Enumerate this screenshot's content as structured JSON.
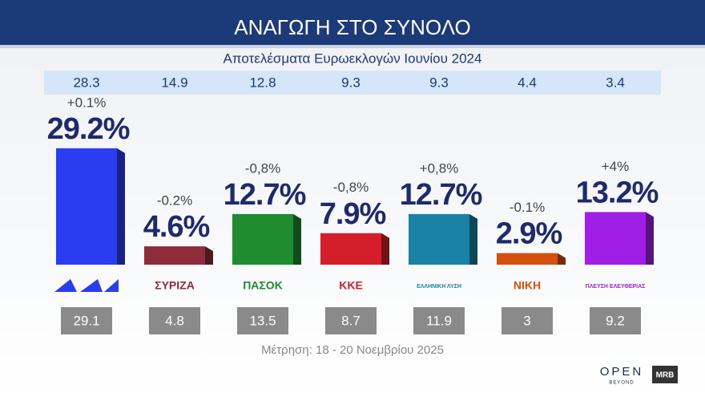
{
  "chart_data": {
    "type": "bar",
    "title": "ΑΝΑΓΩΓΗ ΣΤΟ ΣΥΝΟΛΟ",
    "subtitle": "Αποτελέσματα Ευρωεκλογών Ιουνίου 2024",
    "categories": [
      null,
      "ΣΥΡΙΖΑ",
      "ΠΑΣΟΚ",
      "ΚΚΕ",
      "ΕΛΛΗΝΙΚΗ ΛΥΣΗ",
      "ΝΙΚΗ",
      "ΠΛΕΥΣΗ ΕΛΕΥΘΕΡΙΑΣ"
    ],
    "values": [
      29.2,
      4.6,
      12.7,
      7.9,
      12.7,
      2.9,
      13.2
    ],
    "value_labels": [
      "29.2%",
      "4.6%",
      "12.7%",
      "7.9%",
      "12.7%",
      "2.9%",
      "13.2%"
    ],
    "change_labels": [
      "+0.1%",
      "-0.2%",
      "-0,8%",
      "-0,8%",
      "+0,8%",
      "-0.1%",
      "+4%"
    ],
    "colors": [
      "#2b3df0",
      "#8e2c3c",
      "#1f8c30",
      "#d41f2a",
      "#1a82a4",
      "#d4500f",
      "#a11ee6"
    ],
    "euro_2024": [
      28.3,
      14.9,
      12.8,
      9.3,
      9.3,
      4.4,
      3.4
    ],
    "previous": [
      29.1,
      4.8,
      13.5,
      8.7,
      11.9,
      3,
      9.2
    ],
    "footnote": "Μέτρηση: 18 - 20 Νοεμβρίου 2025",
    "brand": "OPEN",
    "brand_sub": "BEYOND",
    "pollster": "MRB"
  }
}
